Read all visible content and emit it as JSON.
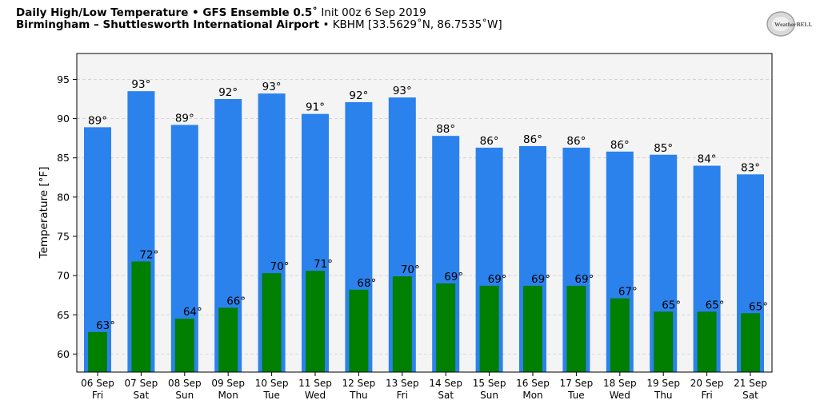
{
  "header": {
    "title_main": "Daily High/Low Temperature • GFS Ensemble 0.5˚",
    "title_init": "Init 00z 6 Sep 2019",
    "location_main": "Birmingham – Shuttlesworth International Airport",
    "location_detail": "• KBHM [33.5629˚N, 86.7535˚W]",
    "logo_text": "WeatherBELL"
  },
  "chart_data": {
    "type": "bar",
    "ylabel": "Temperature [°F]",
    "xlabel": "",
    "ylim": [
      57.7,
      98.3
    ],
    "yticks": [
      60,
      65,
      70,
      75,
      80,
      85,
      90,
      95
    ],
    "grid": true,
    "categories": [
      {
        "date": "06 Sep",
        "day": "Fri"
      },
      {
        "date": "07 Sep",
        "day": "Sat"
      },
      {
        "date": "08 Sep",
        "day": "Sun"
      },
      {
        "date": "09 Sep",
        "day": "Mon"
      },
      {
        "date": "10 Sep",
        "day": "Tue"
      },
      {
        "date": "11 Sep",
        "day": "Wed"
      },
      {
        "date": "12 Sep",
        "day": "Thu"
      },
      {
        "date": "13 Sep",
        "day": "Fri"
      },
      {
        "date": "14 Sep",
        "day": "Sat"
      },
      {
        "date": "15 Sep",
        "day": "Sun"
      },
      {
        "date": "16 Sep",
        "day": "Mon"
      },
      {
        "date": "17 Sep",
        "day": "Tue"
      },
      {
        "date": "18 Sep",
        "day": "Wed"
      },
      {
        "date": "19 Sep",
        "day": "Thu"
      },
      {
        "date": "20 Sep",
        "day": "Fri"
      },
      {
        "date": "21 Sep",
        "day": "Sat"
      }
    ],
    "series": [
      {
        "color": "#2b82ed",
        "values": [
          88.9,
          93.5,
          89.2,
          92.5,
          93.2,
          90.6,
          92.1,
          92.7,
          87.8,
          86.3,
          86.5,
          86.3,
          85.8,
          85.4,
          84.0,
          82.9
        ],
        "labels": [
          "89°",
          "93°",
          "89°",
          "92°",
          "93°",
          "91°",
          "92°",
          "93°",
          "88°",
          "86°",
          "86°",
          "86°",
          "86°",
          "85°",
          "84°",
          "83°"
        ]
      },
      {
        "color": "#007f00",
        "values": [
          62.8,
          71.8,
          64.5,
          65.9,
          70.3,
          70.6,
          68.2,
          69.9,
          69.0,
          68.7,
          68.7,
          68.7,
          67.1,
          65.4,
          65.4,
          65.2
        ],
        "labels": [
          "63°",
          "72°",
          "64°",
          "66°",
          "70°",
          "71°",
          "68°",
          "70°",
          "69°",
          "69°",
          "69°",
          "69°",
          "67°",
          "65°",
          "65°",
          "65°"
        ]
      }
    ]
  }
}
